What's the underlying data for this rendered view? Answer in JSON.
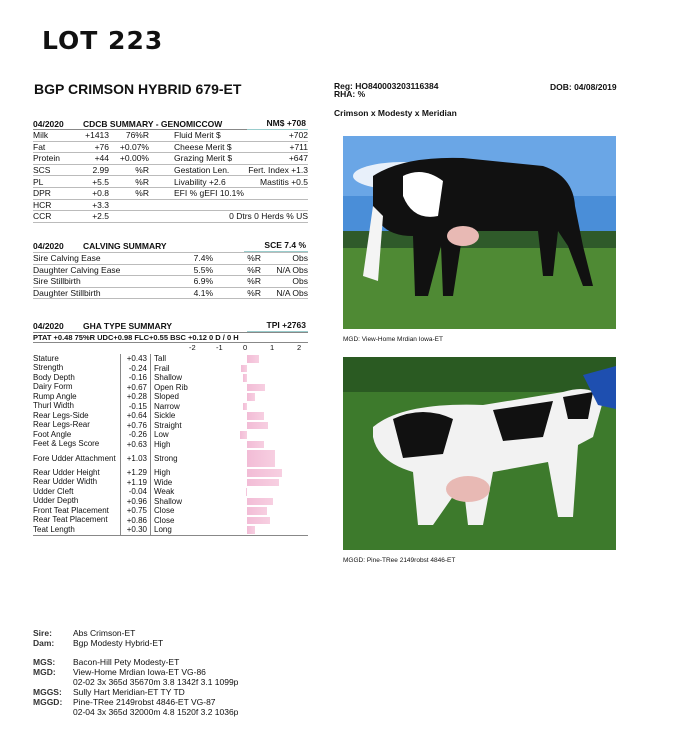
{
  "lot": "LOT 223",
  "animal_name": "BGP CRIMSON HYBRID 679-ET",
  "reg": "Reg: HO840003203116384",
  "rha": "RHA: %",
  "dob": "DOB: 04/08/2019",
  "pedigree_line": "Crimson x Modesty x Meridian",
  "cdcb": {
    "date": "04/2020",
    "title": "CDCB SUMMARY - GENOMICCOW",
    "nm": "NM$ +708",
    "rows": [
      [
        "Milk",
        "+1413",
        "76%R",
        "Fluid Merit $",
        "+702"
      ],
      [
        "Fat",
        "+76",
        "+0.07%",
        "Cheese Merit $",
        "+711"
      ],
      [
        "Protein",
        "+44",
        "+0.00%",
        "Grazing Merit $",
        "+647"
      ],
      [
        "SCS",
        "2.99",
        "%R",
        "Gestation Len.",
        "Fert. Index +1.3"
      ],
      [
        "PL",
        "+5.5",
        "%R",
        "Livability  +2.6",
        "Mastitis  +0.5"
      ],
      [
        "DPR",
        "+0.8",
        "%R",
        "EFI  %     gEFI  10.1%",
        ""
      ],
      [
        "HCR",
        "+3.3",
        "",
        "",
        ""
      ],
      [
        "CCR",
        "+2.5",
        "",
        "",
        "0 Dtrs  0 Herds  % US"
      ]
    ]
  },
  "calving": {
    "date": "04/2020",
    "title": "CALVING SUMMARY",
    "sce": "SCE 7.4 %",
    "rows": [
      [
        "Sire Calving Ease",
        "7.4%",
        "%R",
        "Obs"
      ],
      [
        "Daughter Calving Ease",
        "5.5%",
        "%R",
        "N/A Obs"
      ],
      [
        "Sire Stillbirth",
        "6.9%",
        "%R",
        "Obs"
      ],
      [
        "Daughter Stillbirth",
        "4.1%",
        "%R",
        "N/A Obs"
      ]
    ]
  },
  "type": {
    "date": "04/2020",
    "title": "GHA TYPE SUMMARY",
    "tpi": "TPI +2763",
    "ptat_line": "PTAT +0.48  75%R  UDC+0.98  FLC+0.55  BSC +0.12  0 D /  0 H",
    "axis_ticks": [
      "-2",
      "-1",
      "0",
      "1",
      "2"
    ],
    "bar_color": "#f2bcd6",
    "traits": [
      {
        "name": "Stature",
        "value": 0.43,
        "label": "+0.43",
        "desc": "Tall"
      },
      {
        "name": "Strength",
        "value": -0.24,
        "label": "-0.24",
        "desc": "Frail"
      },
      {
        "name": "Body Depth",
        "value": -0.16,
        "label": "-0.16",
        "desc": "Shallow"
      },
      {
        "name": "Dairy Form",
        "value": 0.67,
        "label": "+0.67",
        "desc": "Open Rib"
      },
      {
        "name": "Rump Angle",
        "value": 0.28,
        "label": "+0.28",
        "desc": "Sloped"
      },
      {
        "name": "Thurl Width",
        "value": -0.15,
        "label": "-0.15",
        "desc": "Narrow"
      },
      {
        "name": "Rear Legs-Side",
        "value": 0.64,
        "label": "+0.64",
        "desc": "Sickle"
      },
      {
        "name": "Rear Legs-Rear",
        "value": 0.76,
        "label": "+0.76",
        "desc": "Straight"
      },
      {
        "name": "Foot Angle",
        "value": -0.26,
        "label": "-0.26",
        "desc": "Low"
      },
      {
        "name": "Feet & Legs Score",
        "value": 0.63,
        "label": "+0.63",
        "desc": "High"
      },
      {
        "name": "Fore Udder Attachment",
        "value": 1.03,
        "label": "+1.03",
        "desc": "Strong"
      },
      {
        "name": "Rear Udder Height",
        "value": 1.29,
        "label": "+1.29",
        "desc": "High"
      },
      {
        "name": "Rear Udder Width",
        "value": 1.19,
        "label": "+1.19",
        "desc": "Wide"
      },
      {
        "name": "Udder Cleft",
        "value": -0.04,
        "label": "-0.04",
        "desc": "Weak"
      },
      {
        "name": "Udder Depth",
        "value": 0.96,
        "label": "+0.96",
        "desc": "Shallow"
      },
      {
        "name": "Front Teat Placement",
        "value": 0.75,
        "label": "+0.75",
        "desc": "Close"
      },
      {
        "name": "Rear Teat Placement",
        "value": 0.86,
        "label": "+0.86",
        "desc": "Close"
      },
      {
        "name": "Teat Length",
        "value": 0.3,
        "label": "+0.30",
        "desc": "Long"
      }
    ]
  },
  "photos": [
    {
      "caption": "MGD: View-Home Mrdian Iowa-ET"
    },
    {
      "caption": "MGGD: Pine-TRee 2149robst 4846-ET"
    }
  ],
  "ancestry": [
    {
      "k": "Sire:",
      "v": "Abs Crimson-ET"
    },
    {
      "k": "Dam:",
      "v": "Bgp Modesty Hybrid-ET"
    },
    {
      "k": "MGS:",
      "v": "Bacon-Hill Pety Modesty-ET"
    },
    {
      "k": "MGD:",
      "v": "View-Home Mrdian Iowa-ET VG-86",
      "v2": "02-02 3x 365d 35670m 3.8 1342f 3.1 1099p"
    },
    {
      "k": "MGGS:",
      "v": "Sully Hart Meridian-ET TY TD"
    },
    {
      "k": "MGGD:",
      "v": "Pine-TRee 2149robst 4846-ET VG-87",
      "v2": "02-04 3x 365d 32000m 4.8 1520f 3.2 1036p"
    }
  ]
}
